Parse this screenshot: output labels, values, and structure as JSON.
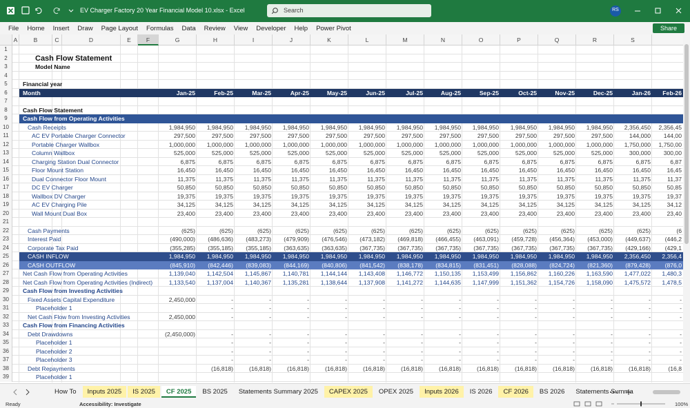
{
  "title_bar": {
    "file_name": "EV Charger Factory 20 Year Financial Model 10.xlsx  -  Excel",
    "search": "Search",
    "user": "RS"
  },
  "menu": {
    "tabs": [
      "File",
      "Home",
      "Insert",
      "Draw",
      "Page Layout",
      "Formulas",
      "Data",
      "Review",
      "View",
      "Developer",
      "Help",
      "Power Pivot"
    ],
    "share": "Share"
  },
  "sheet": {
    "columns": [
      "A",
      "B",
      "C",
      "D",
      "E",
      "F",
      "G",
      "H",
      "I",
      "J",
      "K",
      "L",
      "M",
      "N",
      "O",
      "P",
      "Q",
      "R",
      "S",
      "T"
    ],
    "rows": [
      {
        "number": 1
      },
      {
        "number": 2,
        "label": "Cash Flow Statement"
      },
      {
        "number": 3,
        "label": "Model Name"
      },
      {
        "number": 4
      },
      {
        "number": 5,
        "label": "Financial year"
      },
      {
        "number": 6,
        "label": "Month",
        "values": [
          "Jan-25",
          "Feb-25",
          "Mar-25",
          "Apr-25",
          "May-25",
          "Jun-25",
          "Jul-25",
          "Aug-25",
          "Sep-25",
          "Oct-25",
          "Nov-25",
          "Dec-25",
          "Jan-26",
          "Feb-26"
        ]
      },
      {
        "number": 7
      },
      {
        "number": 8,
        "label": "Cash Flow Statement"
      },
      {
        "number": 9,
        "label": "Cash Flow from Operating Activities"
      },
      {
        "number": 10,
        "label": "Cash Receipts",
        "values": [
          "1,984,950",
          "1,984,950",
          "1,984,950",
          "1,984,950",
          "1,984,950",
          "1,984,950",
          "1,984,950",
          "1,984,950",
          "1,984,950",
          "1,984,950",
          "1,984,950",
          "1,984,950",
          "2,356,450",
          "2,356,45"
        ]
      },
      {
        "number": 11,
        "label": "AC EV Portable Charger Connector",
        "values": [
          "297,500",
          "297,500",
          "297,500",
          "297,500",
          "297,500",
          "297,500",
          "297,500",
          "297,500",
          "297,500",
          "297,500",
          "297,500",
          "297,500",
          "144,000",
          "144,00"
        ]
      },
      {
        "number": 12,
        "label": "Portable Charger Wallbox",
        "values": [
          "1,000,000",
          "1,000,000",
          "1,000,000",
          "1,000,000",
          "1,000,000",
          "1,000,000",
          "1,000,000",
          "1,000,000",
          "1,000,000",
          "1,000,000",
          "1,000,000",
          "1,000,000",
          "1,750,000",
          "1,750,00"
        ]
      },
      {
        "number": 13,
        "label": "Column Wallbox",
        "values": [
          "525,000",
          "525,000",
          "525,000",
          "525,000",
          "525,000",
          "525,000",
          "525,000",
          "525,000",
          "525,000",
          "525,000",
          "525,000",
          "525,000",
          "300,000",
          "300,00"
        ]
      },
      {
        "number": 14,
        "label": "Charging Station Dual Connector",
        "values": [
          "6,875",
          "6,875",
          "6,875",
          "6,875",
          "6,875",
          "6,875",
          "6,875",
          "6,875",
          "6,875",
          "6,875",
          "6,875",
          "6,875",
          "6,875",
          "6,87"
        ]
      },
      {
        "number": 15,
        "label": "Floor Mount Station",
        "values": [
          "16,450",
          "16,450",
          "16,450",
          "16,450",
          "16,450",
          "16,450",
          "16,450",
          "16,450",
          "16,450",
          "16,450",
          "16,450",
          "16,450",
          "16,450",
          "16,45"
        ]
      },
      {
        "number": 16,
        "label": "Dual Connector Floor Mount",
        "values": [
          "11,375",
          "11,375",
          "11,375",
          "11,375",
          "11,375",
          "11,375",
          "11,375",
          "11,375",
          "11,375",
          "11,375",
          "11,375",
          "11,375",
          "11,375",
          "11,37"
        ]
      },
      {
        "number": 17,
        "label": "DC EV Charger",
        "values": [
          "50,850",
          "50,850",
          "50,850",
          "50,850",
          "50,850",
          "50,850",
          "50,850",
          "50,850",
          "50,850",
          "50,850",
          "50,850",
          "50,850",
          "50,850",
          "50,85"
        ]
      },
      {
        "number": 18,
        "label": "Wallbox DV Charger",
        "values": [
          "19,375",
          "19,375",
          "19,375",
          "19,375",
          "19,375",
          "19,375",
          "19,375",
          "19,375",
          "19,375",
          "19,375",
          "19,375",
          "19,375",
          "19,375",
          "19,37"
        ]
      },
      {
        "number": 19,
        "label": "AC EV Charging Pile",
        "values": [
          "34,125",
          "34,125",
          "34,125",
          "34,125",
          "34,125",
          "34,125",
          "34,125",
          "34,125",
          "34,125",
          "34,125",
          "34,125",
          "34,125",
          "34,125",
          "34,12"
        ]
      },
      {
        "number": 20,
        "label": "Wall Mount Dual Box",
        "values": [
          "23,400",
          "23,400",
          "23,400",
          "23,400",
          "23,400",
          "23,400",
          "23,400",
          "23,400",
          "23,400",
          "23,400",
          "23,400",
          "23,400",
          "23,400",
          "23,40"
        ]
      },
      {
        "number": 21
      },
      {
        "number": 22,
        "label": "Cash Payments",
        "values": [
          "(625)",
          "(625)",
          "(625)",
          "(625)",
          "(625)",
          "(625)",
          "(625)",
          "(625)",
          "(625)",
          "(625)",
          "(625)",
          "(625)",
          "(625)",
          "(6"
        ]
      },
      {
        "number": 23,
        "label": "Interest Paid",
        "values": [
          "(490,000)",
          "(486,636)",
          "(483,273)",
          "(479,909)",
          "(476,546)",
          "(473,182)",
          "(469,818)",
          "(466,455)",
          "(463,091)",
          "(459,728)",
          "(456,364)",
          "(453,000)",
          "(449,637)",
          "(446,2"
        ]
      },
      {
        "number": 24,
        "label": "Corporate Tax Paid",
        "values": [
          "(355,285)",
          "(355,185)",
          "(355,185)",
          "(363,635)",
          "(363,635)",
          "(367,735)",
          "(367,735)",
          "(367,735)",
          "(367,735)",
          "(367,735)",
          "(367,735)",
          "(367,735)",
          "(429,166)",
          "(429,1"
        ]
      },
      {
        "number": 25,
        "label": "CASH INFLOW",
        "values": [
          "1,984,950",
          "1,984,950",
          "1,984,950",
          "1,984,950",
          "1,984,950",
          "1,984,950",
          "1,984,950",
          "1,984,950",
          "1,984,950",
          "1,984,950",
          "1,984,950",
          "1,984,950",
          "2,356,450",
          "2,356,4"
        ]
      },
      {
        "number": 26,
        "label": "CASH OUTFLOW",
        "values": [
          "(845,910)",
          "(842,446)",
          "(839,083)",
          "(844,169)",
          "(840,806)",
          "(841,542)",
          "(838,178)",
          "(834,815)",
          "(831,451)",
          "(828,088)",
          "(824,724)",
          "(821,360)",
          "(879,428)",
          "(876,0"
        ]
      },
      {
        "number": 27,
        "label": "Net Cash Flow from Operating Activities",
        "values": [
          "1,139,040",
          "1,142,504",
          "1,145,867",
          "1,140,781",
          "1,144,144",
          "1,143,408",
          "1,146,772",
          "1,150,135",
          "1,153,499",
          "1,156,862",
          "1,160,226",
          "1,163,590",
          "1,477,022",
          "1,480,3"
        ]
      },
      {
        "number": 28,
        "label": "Net Cash Flow from Operating Activities (Indirect)",
        "values": [
          "1,133,540",
          "1,137,004",
          "1,140,367",
          "1,135,281",
          "1,138,644",
          "1,137,908",
          "1,141,272",
          "1,144,635",
          "1,147,999",
          "1,151,362",
          "1,154,726",
          "1,158,090",
          "1,475,572",
          "1,478,5"
        ]
      },
      {
        "number": 29,
        "label": "Cash Flow from Investing Activities"
      },
      {
        "number": 30,
        "label": "Fixed Assets Capital Expenditure",
        "values": [
          "2,450,000",
          "-",
          "-",
          "-",
          "-",
          "-",
          "-",
          "-",
          "-",
          "-",
          "-",
          "-",
          "-",
          "-"
        ]
      },
      {
        "number": 31,
        "label": "Placeholder 1",
        "values": [
          null,
          "-",
          "-",
          "-",
          "-",
          "-",
          "-",
          "-",
          "-",
          "-",
          "-",
          "-",
          "-",
          "-"
        ]
      },
      {
        "number": 32,
        "label": "Net Cash Flow from Investing Activities",
        "values": [
          "2,450,000",
          "-",
          "-",
          "-",
          "-",
          "-",
          "-",
          "-",
          "-",
          "-",
          "-",
          "-",
          "-",
          "-"
        ]
      },
      {
        "number": 33,
        "label": "Cash Flow from Financing Activities"
      },
      {
        "number": 34,
        "label": "Debt Drawdowns",
        "values": [
          "(2,450,000)",
          "-",
          "-",
          "-",
          "-",
          "-",
          "-",
          "-",
          "-",
          "-",
          "-",
          "-",
          "-",
          "-"
        ]
      },
      {
        "number": 35,
        "label": "Placeholder 1",
        "values": [
          null,
          "-",
          "-",
          "-",
          "-",
          "-",
          "-",
          "-",
          "-",
          "-",
          "-",
          "-",
          "-",
          "-"
        ]
      },
      {
        "number": 36,
        "label": "Placeholder 2",
        "values": [
          null,
          "-",
          "-",
          "-",
          "-",
          "-",
          "-",
          "-",
          "-",
          "-",
          "-",
          "-",
          "-",
          "-"
        ]
      },
      {
        "number": 37,
        "label": "Placeholder 3",
        "values": [
          null,
          "-",
          "-",
          "-",
          "-",
          "-",
          "-",
          "-",
          "-",
          "-",
          "-",
          "-",
          "-",
          "-"
        ]
      },
      {
        "number": 38,
        "label": "Debt Repayments",
        "values": [
          null,
          "(16,818)",
          "(16,818)",
          "(16,818)",
          "(16,818)",
          "(16,818)",
          "(16,818)",
          "(16,818)",
          "(16,818)",
          "(16,818)",
          "(16,818)",
          "(16,818)",
          "(16,818)",
          "(16,8"
        ]
      },
      {
        "number": 39,
        "label": "Placeholder 1"
      }
    ]
  },
  "sheet_tabs": [
    "How To",
    "Inputs 2025",
    "IS 2025",
    "CF 2025",
    "BS 2025",
    "Statements Summary 2025",
    "CAPEX 2025",
    "OPEX 2025",
    "Inputs 2026",
    "IS 2026",
    "CF 2026",
    "BS 2026",
    "Statements Summa"
  ],
  "status_bar": {
    "status": "Ready",
    "accessibility": "Accessibility: Investigate",
    "zoom": "100%"
  }
}
